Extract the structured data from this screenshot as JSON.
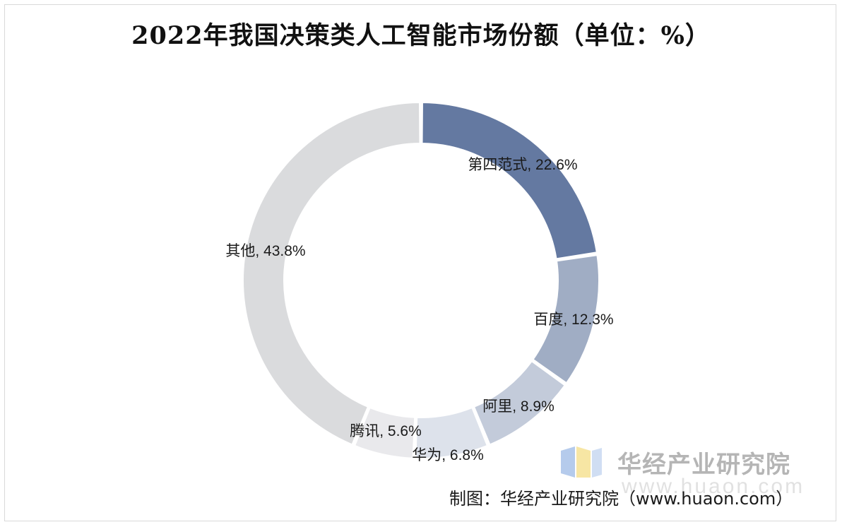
{
  "chart_data": {
    "type": "pie",
    "variant": "donut",
    "title": "2022年我国决策类人工智能市场份额（单位：%）",
    "slices": [
      {
        "name": "第四范式",
        "value": 22.6,
        "label": "第四范式, 22.6%",
        "color": "#6479a1"
      },
      {
        "name": "百度",
        "value": 12.3,
        "label": "百度, 12.3%",
        "color": "#a0adc4"
      },
      {
        "name": "阿里",
        "value": 8.9,
        "label": "阿里, 8.9%",
        "color": "#c3cbda"
      },
      {
        "name": "华为",
        "value": 6.8,
        "label": "华为, 6.8%",
        "color": "#dde2eb"
      },
      {
        "name": "腾讯",
        "value": 5.6,
        "label": "腾讯, 5.6%",
        "color": "#e9e9ec"
      },
      {
        "name": "其他",
        "value": 43.8,
        "label": "其他, 43.8%",
        "color": "#dadbdd"
      }
    ]
  },
  "watermark": {
    "name": "华经产业研究院",
    "url": "www.huaon.com"
  },
  "source": {
    "text": "制图：华经产业研究院（www.huaon.com）"
  }
}
